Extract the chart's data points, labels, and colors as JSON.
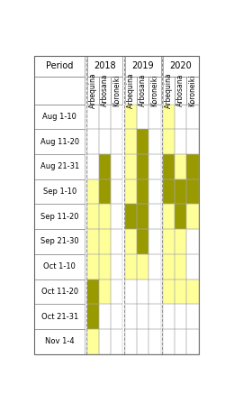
{
  "periods": [
    "Aug 1-10",
    "Aug 11-20",
    "Aug 21-31",
    "Sep 1-10",
    "Sep 11-20",
    "Sep 21-30",
    "Oct 1-10",
    "Oct 11-20",
    "Oct 21-31",
    "Nov 1-4"
  ],
  "years": [
    "2018",
    "2019",
    "2020"
  ],
  "cultivars": [
    "Arbequina",
    "Arbosana",
    "Koroneiki"
  ],
  "light_yellow": "#FFFF99",
  "dark_yellow": "#999900",
  "cells": {
    "2018": {
      "Arbequina": {
        "light": [
          3,
          4,
          5,
          6,
          7,
          8,
          9
        ],
        "dark": [
          7,
          8
        ]
      },
      "Arbosana": {
        "light": [
          2,
          3,
          4,
          5,
          6,
          7
        ],
        "dark": [
          2,
          3
        ]
      },
      "Koroneiki": {
        "light": [],
        "dark": []
      }
    },
    "2019": {
      "Arbequina": {
        "light": [
          0,
          1,
          2,
          3,
          4,
          5,
          6
        ],
        "dark": [
          4
        ]
      },
      "Arbosana": {
        "light": [
          1,
          2,
          3,
          4,
          5,
          6
        ],
        "dark": [
          1,
          2,
          3,
          4,
          5
        ]
      },
      "Koroneiki": {
        "light": [],
        "dark": []
      }
    },
    "2020": {
      "Arbequina": {
        "light": [
          0,
          1,
          2,
          3,
          4,
          5,
          6,
          7
        ],
        "dark": [
          2,
          3
        ]
      },
      "Arbosana": {
        "light": [
          2,
          3,
          4,
          5,
          6,
          7
        ],
        "dark": [
          3,
          4
        ]
      },
      "Koroneiki": {
        "light": [
          2,
          3,
          4,
          7
        ],
        "dark": [
          2,
          3
        ]
      }
    }
  }
}
